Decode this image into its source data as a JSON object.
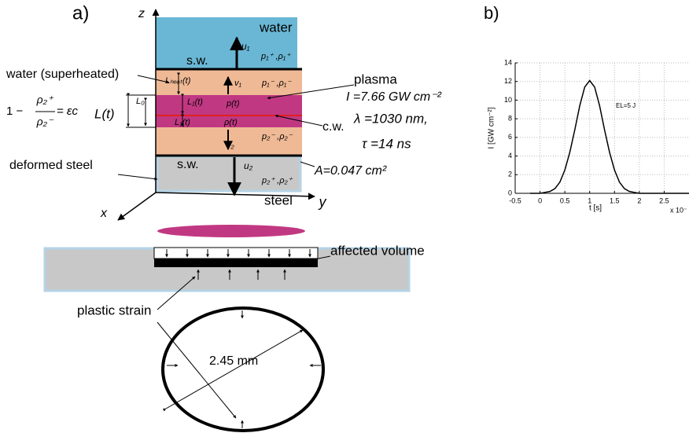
{
  "panel_a": {
    "label": "a)",
    "axes": {
      "z": "z",
      "y": "y",
      "x": "x"
    },
    "texts": {
      "water": "water",
      "u1": "u₁",
      "sw_top": "s.w.",
      "p1_plus": "p₁⁺ ,ρ₁⁺",
      "superheated": "water (superheated)",
      "l_heat": "Lₕₑₐₜ(t)",
      "v1": "v₁",
      "p1_minus": "p₁⁻ ,ρ₁⁻",
      "plasma": "plasma",
      "intensity": "I =7.66 GW cm⁻²",
      "eq_one": "1 −",
      "eq_num": "ρ₂⁺",
      "eq_den": "ρ₂⁻",
      "eq_rhs": "= εc",
      "l_t": "L(t)",
      "l_0": "L₀",
      "l1_upper": "L₁(t)",
      "p_t": "p(t)",
      "l1_lower": "L₁(t)",
      "rho_t": "ρ(t)",
      "cw": "c.w.",
      "lambda": "λ =1030 nm,",
      "v2": "v₂",
      "p2_minus": "p₂⁻ ,ρ₂⁻",
      "tau": "τ =14 ns",
      "deformed": "deformed steel",
      "sw_bottom": "s.w.",
      "u2": "u₂",
      "area": "A=0.047 cm²",
      "p2_plus": "p₂⁺ ,ρ₂⁺",
      "steel": "steel",
      "affected": "affected volume",
      "plastic": "plastic strain",
      "diameter": "2.45  mm"
    }
  },
  "panel_b": {
    "label": "b)",
    "type": "line",
    "x_label": "t  [s]",
    "x_multiplier": "x 10⁻",
    "y_label": "I  [GW cm⁻²]",
    "annotation": "EL=5 J",
    "x": [
      -0.2,
      0,
      0.1,
      0.2,
      0.3,
      0.4,
      0.5,
      0.6,
      0.7,
      0.8,
      0.9,
      1.0,
      1.1,
      1.2,
      1.3,
      1.4,
      1.5,
      1.6,
      1.7,
      1.8,
      1.9,
      2.0,
      3.0
    ],
    "values": [
      0,
      0,
      0.1,
      0.2,
      0.5,
      1.2,
      2.5,
      4.4,
      6.8,
      9.4,
      11.4,
      12.1,
      11.4,
      9.4,
      6.8,
      4.4,
      2.5,
      1.2,
      0.5,
      0.2,
      0.1,
      0,
      0
    ],
    "color": "#000000",
    "xlim": [
      -0.5,
      3
    ],
    "ylim": [
      0,
      14
    ],
    "xticks": [
      -0.5,
      0,
      0.5,
      1,
      1.5,
      2,
      2.5
    ],
    "yticks": [
      0,
      2,
      4,
      6,
      8,
      10,
      12,
      14
    ],
    "grid": true
  }
}
